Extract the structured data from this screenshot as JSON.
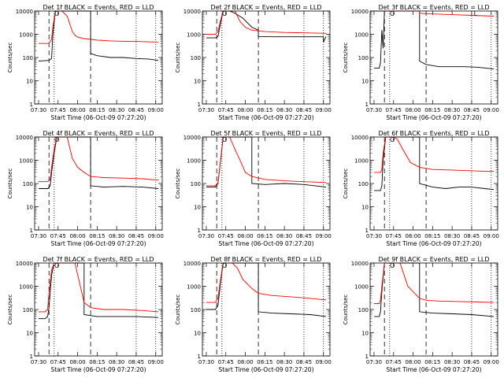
{
  "chart_data": [
    {
      "type": "line",
      "title": "Det 1f BLACK = Events, RED = LLD",
      "xlabel": "Start Time (06-Oct-09 07:27:20)",
      "ylabel": "Counts/sec",
      "yscale": "log",
      "ylim": [
        1,
        10000
      ],
      "x_ticks": [
        "07:30",
        "07:45",
        "08:00",
        "08:15",
        "08:30",
        "08:45",
        "09:00"
      ],
      "y_ticks": [
        "1",
        "10",
        "100",
        "1000",
        "10000"
      ],
      "series": [
        {
          "color": "#000000",
          "x": [
            "07:30",
            "07:38",
            "07:40",
            "07:41",
            "07:43",
            "07:45",
            "07:48",
            "07:52",
            "07:57",
            "08:00",
            "08:10",
            "08:10",
            "08:15",
            "08:25",
            "08:35",
            "08:45",
            "08:55",
            "09:02"
          ],
          "y": [
            70,
            75,
            90,
            1000,
            10000,
            10000,
            10000,
            10000,
            10000,
            10000,
            10000,
            150,
            120,
            100,
            100,
            90,
            85,
            75
          ]
        },
        {
          "color": "#ff0000",
          "x": [
            "07:30",
            "07:38",
            "07:40",
            "07:41",
            "07:43",
            "07:45",
            "07:48",
            "07:52",
            "07:56",
            "07:58",
            "08:00",
            "08:05",
            "08:10",
            "08:15",
            "08:25",
            "08:35",
            "08:45",
            "08:55",
            "09:02"
          ],
          "y": [
            400,
            400,
            600,
            2000,
            10000,
            10000,
            10000,
            6000,
            1300,
            900,
            750,
            650,
            600,
            560,
            520,
            500,
            490,
            470,
            460
          ]
        }
      ],
      "markers": [
        "O"
      ]
    },
    {
      "type": "line",
      "title": "Det 2f BLACK = Events, RED = LLD",
      "xlabel": "Start Time (06-Oct-09 07:27:20)",
      "ylabel": "Counts/sec",
      "yscale": "log",
      "ylim": [
        1,
        10000
      ],
      "x_ticks": [
        "07:30",
        "07:45",
        "08:00",
        "08:15",
        "08:30",
        "08:45",
        "09:00"
      ],
      "y_ticks": [
        "1",
        "10",
        "100",
        "1000",
        "10000"
      ],
      "series": [
        {
          "color": "#000000",
          "x": [
            "07:30",
            "07:37",
            "07:39",
            "07:41",
            "07:43",
            "07:48",
            "07:52",
            "07:58",
            "08:05",
            "08:10",
            "08:10",
            "08:20",
            "08:35",
            "08:50",
            "09:00",
            "09:00",
            "09:02"
          ],
          "y": [
            700,
            700,
            800,
            3000,
            10000,
            10000,
            8000,
            5000,
            2000,
            1500,
            800,
            780,
            780,
            780,
            780,
            450,
            800
          ]
        },
        {
          "color": "#ff0000",
          "x": [
            "07:30",
            "07:37",
            "07:39",
            "07:41",
            "07:43",
            "07:48",
            "07:52",
            "07:56",
            "08:00",
            "08:05",
            "08:15",
            "08:30",
            "08:45",
            "09:02"
          ],
          "y": [
            1000,
            1000,
            1300,
            4000,
            10000,
            10000,
            10000,
            3500,
            2000,
            1500,
            1300,
            1200,
            1150,
            1100
          ]
        }
      ],
      "markers": [
        "O"
      ]
    },
    {
      "type": "line",
      "title": "Det 3f BLACK = Events, RED = LLD",
      "xlabel": "Start Time (06-Oct-09 07:27:20)",
      "ylabel": "Counts/sec",
      "yscale": "log",
      "ylim": [
        1,
        10000
      ],
      "x_ticks": [
        "07:30",
        "07:45",
        "08:00",
        "08:15",
        "08:30",
        "08:45",
        "09:00"
      ],
      "y_ticks": [
        "1",
        "10",
        "100",
        "1000",
        "10000"
      ],
      "series": [
        {
          "color": "#000000",
          "x": [
            "07:30",
            "07:34",
            "07:35",
            "07:36",
            "07:37",
            "07:38",
            "07:40",
            "07:42",
            "08:05",
            "08:05",
            "08:10",
            "08:20",
            "08:30",
            "08:40",
            "08:50",
            "09:02"
          ],
          "y": [
            35,
            35,
            60,
            1500,
            250,
            10000,
            10000,
            10000,
            10000,
            70,
            50,
            40,
            40,
            40,
            38,
            32
          ]
        },
        {
          "color": "#ff0000",
          "x": [
            "07:30",
            "07:35",
            "07:36",
            "07:37",
            "07:38",
            "07:42",
            "08:05",
            "08:05",
            "08:15",
            "08:30",
            "08:45",
            "09:02"
          ],
          "y": [
            10000,
            10000,
            10000,
            10000,
            10000,
            10000,
            10000,
            8000,
            7500,
            7000,
            6500,
            6000
          ]
        }
      ],
      "markers": [
        "O",
        "L"
      ]
    },
    {
      "type": "line",
      "title": "Det 4f BLACK = Events, RED = LLD",
      "xlabel": "Start Time (06-Oct-09 07:27:20)",
      "ylabel": "Counts/sec",
      "yscale": "log",
      "ylim": [
        1,
        10000
      ],
      "x_ticks": [
        "07:30",
        "07:45",
        "08:00",
        "08:15",
        "08:30",
        "08:45",
        "09:00"
      ],
      "y_ticks": [
        "1",
        "10",
        "100",
        "1000",
        "10000"
      ],
      "series": [
        {
          "color": "#000000",
          "x": [
            "07:30",
            "07:37",
            "07:39",
            "07:40",
            "07:42",
            "07:44",
            "07:48",
            "07:52",
            "07:58",
            "08:05",
            "08:10",
            "08:10",
            "08:20",
            "08:35",
            "08:50",
            "09:02"
          ],
          "y": [
            60,
            60,
            80,
            300,
            2000,
            10000,
            10000,
            10000,
            10000,
            10000,
            10000,
            80,
            70,
            75,
            70,
            60
          ]
        },
        {
          "color": "#ff0000",
          "x": [
            "07:30",
            "07:37",
            "07:39",
            "07:40",
            "07:42",
            "07:44",
            "07:48",
            "07:52",
            "07:56",
            "08:00",
            "08:05",
            "08:10",
            "08:20",
            "08:35",
            "08:50",
            "09:02"
          ],
          "y": [
            120,
            120,
            150,
            500,
            3000,
            10000,
            10000,
            10000,
            1200,
            500,
            300,
            200,
            180,
            170,
            160,
            140
          ]
        }
      ],
      "markers": [
        "O"
      ]
    },
    {
      "type": "line",
      "title": "Det 5f BLACK = Events, RED = LLD",
      "xlabel": "Start Time (06-Oct-09 07:27:20)",
      "ylabel": "Counts/sec",
      "yscale": "log",
      "ylim": [
        1,
        10000
      ],
      "x_ticks": [
        "07:30",
        "07:45",
        "08:00",
        "08:15",
        "08:30",
        "08:45",
        "09:00"
      ],
      "y_ticks": [
        "1",
        "10",
        "100",
        "1000",
        "10000"
      ],
      "series": [
        {
          "color": "#000000",
          "x": [
            "07:30",
            "07:37",
            "07:39",
            "07:41",
            "07:43",
            "07:46",
            "07:48",
            "07:52",
            "07:58",
            "08:05",
            "08:05",
            "08:15",
            "08:30",
            "08:45",
            "09:02"
          ],
          "y": [
            70,
            70,
            100,
            1000,
            10000,
            10000,
            10000,
            10000,
            10000,
            10000,
            100,
            90,
            100,
            90,
            70
          ]
        },
        {
          "color": "#ff0000",
          "x": [
            "07:30",
            "07:37",
            "07:39",
            "07:41",
            "07:43",
            "07:46",
            "07:48",
            "07:52",
            "07:56",
            "08:00",
            "08:05",
            "08:15",
            "08:30",
            "08:45",
            "09:02"
          ],
          "y": [
            80,
            80,
            110,
            1000,
            10000,
            10000,
            10000,
            3000,
            1000,
            300,
            200,
            150,
            130,
            120,
            110
          ]
        }
      ],
      "markers": [
        "O"
      ]
    },
    {
      "type": "line",
      "title": "Det 6f BLACK = Events, RED = LLD",
      "xlabel": "Start Time (06-Oct-09 07:27:20)",
      "ylabel": "Counts/sec",
      "yscale": "log",
      "ylim": [
        1,
        10000
      ],
      "x_ticks": [
        "07:30",
        "07:45",
        "08:00",
        "08:15",
        "08:30",
        "08:45",
        "09:00"
      ],
      "y_ticks": [
        "1",
        "10",
        "100",
        "1000",
        "10000"
      ],
      "series": [
        {
          "color": "#000000",
          "x": [
            "07:30",
            "07:35",
            "07:36",
            "07:37",
            "07:39",
            "07:41",
            "07:45",
            "07:50",
            "07:58",
            "08:05",
            "08:05",
            "08:15",
            "08:25",
            "08:35",
            "08:45",
            "08:55",
            "09:02"
          ],
          "y": [
            50,
            50,
            80,
            1000,
            10000,
            10000,
            10000,
            10000,
            10000,
            10000,
            100,
            70,
            60,
            70,
            70,
            60,
            55
          ]
        },
        {
          "color": "#ff0000",
          "x": [
            "07:30",
            "07:35",
            "07:36",
            "07:37",
            "07:39",
            "07:41",
            "07:45",
            "07:48",
            "07:52",
            "07:58",
            "08:05",
            "08:15",
            "08:30",
            "08:45",
            "09:02"
          ],
          "y": [
            300,
            300,
            400,
            2000,
            10000,
            10000,
            10000,
            8000,
            3000,
            800,
            500,
            400,
            380,
            350,
            330
          ]
        }
      ],
      "markers": [
        "O"
      ]
    },
    {
      "type": "line",
      "title": "Det 7f BLACK = Events, RED = LLD",
      "xlabel": "Start Time (06-Oct-09 07:27:20)",
      "ylabel": "Counts/sec",
      "yscale": "log",
      "ylim": [
        1,
        10000
      ],
      "x_ticks": [
        "07:30",
        "07:45",
        "08:00",
        "08:15",
        "08:30",
        "08:45",
        "09:00"
      ],
      "y_ticks": [
        "1",
        "10",
        "100",
        "1000",
        "10000"
      ],
      "series": [
        {
          "color": "#000000",
          "x": [
            "07:30",
            "07:35",
            "07:37",
            "07:38",
            "07:40",
            "07:42",
            "07:46",
            "07:52",
            "07:58",
            "08:05",
            "08:05",
            "08:15",
            "08:30",
            "08:45",
            "09:02"
          ],
          "y": [
            40,
            40,
            50,
            120,
            3000,
            10000,
            10000,
            10000,
            10000,
            10000,
            60,
            50,
            50,
            50,
            45
          ]
        },
        {
          "color": "#ff0000",
          "x": [
            "07:30",
            "07:35",
            "07:37",
            "07:38",
            "07:40",
            "07:42",
            "07:46",
            "07:52",
            "07:58",
            "08:05",
            "08:10",
            "08:20",
            "08:35",
            "08:50",
            "09:02"
          ],
          "y": [
            80,
            80,
            100,
            500,
            5000,
            10000,
            10000,
            10000,
            10000,
            200,
            120,
            100,
            100,
            90,
            80
          ]
        }
      ],
      "markers": [
        "O"
      ]
    },
    {
      "type": "line",
      "title": "Det 8f BLACK = Events, RED = LLD",
      "xlabel": "Start Time (06-Oct-09 07:27:20)",
      "ylabel": "Counts/sec",
      "yscale": "log",
      "ylim": [
        1,
        10000
      ],
      "x_ticks": [
        "07:30",
        "07:45",
        "08:00",
        "08:15",
        "08:30",
        "08:45",
        "09:00"
      ],
      "y_ticks": [
        "1",
        "10",
        "100",
        "1000",
        "10000"
      ],
      "series": [
        {
          "color": "#000000",
          "x": [
            "07:30",
            "07:37",
            "07:39",
            "07:41",
            "07:43",
            "07:46",
            "07:50",
            "07:58",
            "08:05",
            "08:10",
            "08:10",
            "08:20",
            "08:35",
            "08:50",
            "09:02"
          ],
          "y": [
            100,
            100,
            150,
            1500,
            10000,
            10000,
            10000,
            10000,
            10000,
            10000,
            80,
            70,
            65,
            60,
            50
          ]
        },
        {
          "color": "#ff0000",
          "x": [
            "07:30",
            "07:37",
            "07:39",
            "07:41",
            "07:43",
            "07:46",
            "07:50",
            "07:54",
            "07:58",
            "08:05",
            "08:10",
            "08:20",
            "08:35",
            "08:50",
            "09:02"
          ],
          "y": [
            200,
            200,
            300,
            2000,
            10000,
            10000,
            10000,
            6000,
            2000,
            800,
            500,
            400,
            350,
            300,
            260
          ]
        }
      ],
      "markers": [
        "O"
      ]
    },
    {
      "type": "line",
      "title": "Det 9f BLACK = Events, RED = LLD",
      "xlabel": "Start Time (06-Oct-09 07:27:20)",
      "ylabel": "Counts/sec",
      "yscale": "log",
      "ylim": [
        1,
        10000
      ],
      "x_ticks": [
        "07:30",
        "07:45",
        "08:00",
        "08:15",
        "08:30",
        "08:45",
        "09:00"
      ],
      "y_ticks": [
        "1",
        "10",
        "100",
        "1000",
        "10000"
      ],
      "series": [
        {
          "color": "#000000",
          "x": [
            "07:30",
            "07:34",
            "07:35",
            "07:36",
            "07:38",
            "07:40",
            "07:45",
            "07:52",
            "07:58",
            "08:05",
            "08:05",
            "08:15",
            "08:30",
            "08:45",
            "09:02"
          ],
          "y": [
            50,
            50,
            80,
            600,
            10000,
            10000,
            10000,
            10000,
            10000,
            10000,
            80,
            70,
            65,
            60,
            50
          ]
        },
        {
          "color": "#ff0000",
          "x": [
            "07:30",
            "07:34",
            "07:35",
            "07:36",
            "07:38",
            "07:40",
            "07:45",
            "07:50",
            "07:56",
            "08:05",
            "08:10",
            "08:20",
            "08:35",
            "08:50",
            "09:02"
          ],
          "y": [
            180,
            180,
            250,
            1000,
            10000,
            10000,
            10000,
            10000,
            1000,
            300,
            250,
            230,
            220,
            210,
            200
          ]
        }
      ],
      "markers": [
        "O"
      ]
    }
  ]
}
